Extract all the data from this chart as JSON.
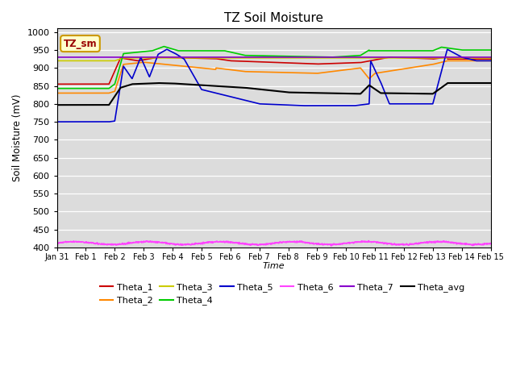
{
  "title": "TZ Soil Moisture",
  "xlabel": "Time",
  "ylabel": "Soil Moisture (mV)",
  "ylim": [
    400,
    1010
  ],
  "yticks": [
    400,
    450,
    500,
    550,
    600,
    650,
    700,
    750,
    800,
    850,
    900,
    950,
    1000
  ],
  "bg_color": "#dcdcdc",
  "fig_color": "#ffffff",
  "legend_label": "TZ_sm",
  "legend_box_color": "#ffffcc",
  "legend_box_edge": "#cc9900",
  "legend_text_color": "#990000",
  "series_order": [
    "Theta_1",
    "Theta_2",
    "Theta_3",
    "Theta_4",
    "Theta_5",
    "Theta_6",
    "Theta_7",
    "Theta_avg"
  ],
  "series": {
    "Theta_1": {
      "color": "#cc0000",
      "lw": 1.2
    },
    "Theta_2": {
      "color": "#ff8800",
      "lw": 1.2
    },
    "Theta_3": {
      "color": "#cccc00",
      "lw": 1.2
    },
    "Theta_4": {
      "color": "#00cc00",
      "lw": 1.2
    },
    "Theta_5": {
      "color": "#0000cc",
      "lw": 1.2
    },
    "Theta_6": {
      "color": "#ff44ff",
      "lw": 1.2
    },
    "Theta_7": {
      "color": "#8800cc",
      "lw": 1.2
    },
    "Theta_avg": {
      "color": "#000000",
      "lw": 1.5
    }
  },
  "xtick_labels": [
    "Jan 31",
    "Feb 1",
    "Feb 2",
    "Feb 3",
    "Feb 4",
    "Feb 5",
    "Feb 6",
    "Feb 7",
    "Feb 8",
    "Feb 9",
    "Feb 10",
    "Feb 11",
    "Feb 12",
    "Feb 13",
    "Feb 14",
    "Feb 15"
  ]
}
